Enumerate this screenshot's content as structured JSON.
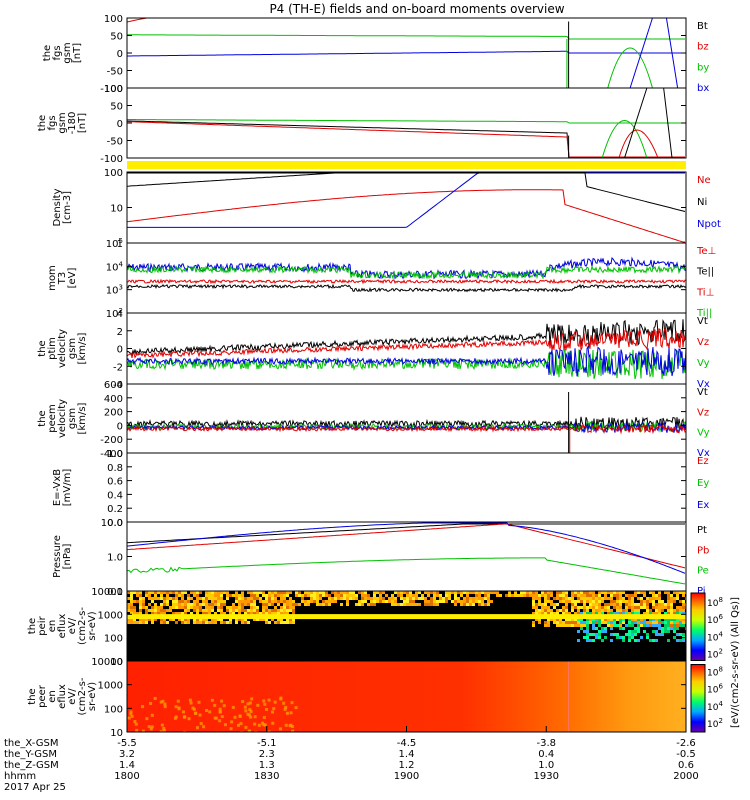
{
  "chart_data": {
    "type": "line",
    "title": "P4 (TH-E) fields and on-board moments overview",
    "date_label": "2017 Apr 25",
    "x_axis": {
      "rows": [
        {
          "label": "the_X-GSM",
          "values": [
            "-5.5",
            "-5.1",
            "-4.5",
            "-3.8",
            "-2.6"
          ]
        },
        {
          "label": "the_Y-GSM",
          "values": [
            "3.2",
            "2.3",
            "1.4",
            "0.4",
            "-0.5"
          ]
        },
        {
          "label": "the_Z-GSM",
          "values": [
            "1.4",
            "1.3",
            "1.2",
            "1.0",
            "0.6"
          ]
        },
        {
          "label": "hhmm",
          "values": [
            "1800",
            "1830",
            "1900",
            "1930",
            "2000"
          ]
        }
      ]
    },
    "panels": [
      {
        "id": "fgs",
        "ylabel": [
          "the",
          "fgs",
          "gsm",
          "[nT]"
        ],
        "yticks": [
          "100",
          "50",
          "0",
          "-50",
          "-100"
        ],
        "ylim": [
          -100,
          100
        ],
        "legend": [
          {
            "name": "Bt",
            "color": "#000000"
          },
          {
            "name": "bz",
            "color": "#e00000"
          },
          {
            "name": "by",
            "color": "#00c000"
          },
          {
            "name": "bx",
            "color": "#0000e0"
          }
        ]
      },
      {
        "id": "fgs2",
        "ylabel": [
          "the",
          "fgs",
          "gsm",
          "-180",
          "[nT]"
        ],
        "yticks": [
          "100",
          "50",
          "0",
          "-50",
          "-100"
        ],
        "ylim": [
          -120,
          100
        ],
        "legend": []
      },
      {
        "id": "density",
        "ylabel": [
          "Density",
          "[cm-3]"
        ],
        "yticks": [
          "100",
          "10",
          "1"
        ],
        "log": true,
        "legend": [
          {
            "name": "Ne",
            "color": "#e00000"
          },
          {
            "name": "Ni",
            "color": "#000000"
          },
          {
            "name": "Npot",
            "color": "#0000e0"
          }
        ]
      },
      {
        "id": "temp",
        "ylabel": [
          "mom",
          "T3",
          "[eV]"
        ],
        "yticks": [
          "10^5",
          "10^4",
          "10^3",
          "10^2"
        ],
        "log": true,
        "legend": [
          {
            "name": "Te⊥",
            "color": "#e00000"
          },
          {
            "name": "Te||",
            "color": "#000000"
          },
          {
            "name": "Ti⊥",
            "color": "#e00000"
          },
          {
            "name": "Ti||",
            "color": "#00c000"
          }
        ]
      },
      {
        "id": "vel_ptim",
        "ylabel": [
          "the",
          "ptim",
          "velocity",
          "gsm",
          "[km/s]"
        ],
        "yticks": [
          "4",
          "2",
          "0",
          "-2",
          "-4"
        ],
        "legend": [
          {
            "name": "Vt",
            "color": "#000000"
          },
          {
            "name": "Vz",
            "color": "#e00000"
          },
          {
            "name": "Vy",
            "color": "#00c000"
          },
          {
            "name": "Vx",
            "color": "#0000e0"
          }
        ]
      },
      {
        "id": "vel_peem",
        "ylabel": [
          "the",
          "peem",
          "velocity",
          "gsm",
          "[km/s]"
        ],
        "yticks": [
          "600",
          "400",
          "200",
          "0",
          "-200",
          "-400"
        ],
        "legend": [
          {
            "name": "Vt",
            "color": "#000000"
          },
          {
            "name": "Vz",
            "color": "#e00000"
          },
          {
            "name": "Vy",
            "color": "#00c000"
          },
          {
            "name": "Vx",
            "color": "#0000e0"
          }
        ]
      },
      {
        "id": "efield",
        "ylabel": [
          "E=-VxB",
          "[mV/m]"
        ],
        "yticks": [
          "1.0",
          "0.8",
          "0.6",
          "0.4",
          "0.2",
          "0.0"
        ],
        "legend": [
          {
            "name": "Ez",
            "color": "#e00000"
          },
          {
            "name": "Ey",
            "color": "#00c000"
          },
          {
            "name": "Ex",
            "color": "#0000e0"
          }
        ]
      },
      {
        "id": "pressure",
        "ylabel": [
          "Pressure",
          "[nPa]"
        ],
        "yticks": [
          "10.0",
          "1.0",
          "0.1"
        ],
        "log": true,
        "legend": [
          {
            "name": "Pt",
            "color": "#000000"
          },
          {
            "name": "Pb",
            "color": "#e00000"
          },
          {
            "name": "Pe",
            "color": "#00c000"
          },
          {
            "name": "Pi",
            "color": "#0000e0"
          }
        ]
      },
      {
        "id": "peir",
        "ylabel": [
          "the",
          "peir",
          "en",
          "eflux",
          "eV/",
          "(cm2-s-",
          "sr-eV)"
        ],
        "yticks": [
          "10000",
          "1000",
          "100",
          "10"
        ]
      },
      {
        "id": "peer",
        "ylabel": [
          "the",
          "peer",
          "en",
          "eflux",
          "eV/",
          "(cm2-s-",
          "sr-eV)"
        ],
        "yticks": [
          "10000",
          "1000",
          "100",
          "10"
        ]
      }
    ],
    "colorbar": {
      "label": "[eV/(cm2-s-sr-eV) (All Qs)]",
      "ticks": [
        "10^8",
        "10^6",
        "10^4",
        "10^2"
      ]
    }
  }
}
